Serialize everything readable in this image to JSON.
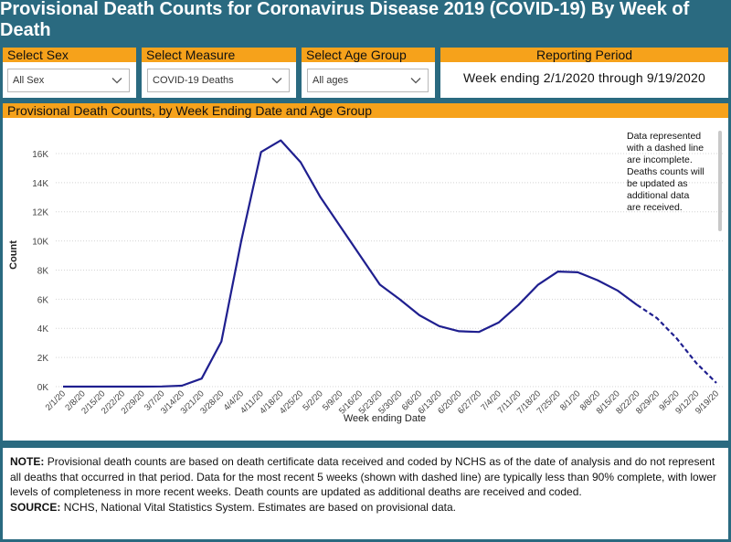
{
  "title": "Provisional Death Counts for Coronavirus Disease 2019 (COVID-19) By Week of Death",
  "filters": {
    "sex": {
      "label": "Select Sex",
      "value": "All Sex"
    },
    "measure": {
      "label": "Select Measure",
      "value": "COVID-19 Deaths"
    },
    "age": {
      "label": "Select Age Group",
      "value": "All ages"
    }
  },
  "period": {
    "label": "Reporting Period",
    "text": "Week ending 2/1/2020 through 9/19/2020"
  },
  "chart_header": "Provisional Death Counts, by Week Ending Date and Age Group",
  "side_note": "Data represented with a dashed line are incomplete. Deaths counts will be updated as additional data are received.",
  "note": {
    "label": "NOTE:",
    "text": "Provisional death counts are based on death certificate data received and coded by NCHS as of the date of analysis and do not represent all deaths that occurred in that period. Data for the most recent 5 weeks (shown with dashed line) are typically less than 90% complete, with lower levels of completeness in more recent weeks.  Death counts are updated as additional deaths are received and coded."
  },
  "source": {
    "label": "SOURCE:",
    "text": "NCHS, National Vital Statistics System. Estimates are based on provisional data."
  },
  "colors": {
    "header_bg": "#2a6a80",
    "accent": "#f6a21b",
    "line": "#1f1f8f"
  },
  "icons": {
    "dropdown": "chevron-down-icon"
  },
  "chart_data": {
    "type": "line",
    "xlabel": "Week ending Date",
    "ylabel": "Count",
    "categories": [
      "2/1/20",
      "2/8/20",
      "2/15/20",
      "2/22/20",
      "2/29/20",
      "3/7/20",
      "3/14/20",
      "3/21/20",
      "3/28/20",
      "4/4/20",
      "4/11/20",
      "4/18/20",
      "4/25/20",
      "5/2/20",
      "5/9/20",
      "5/16/20",
      "5/23/20",
      "5/30/20",
      "6/6/20",
      "6/13/20",
      "6/20/20",
      "6/27/20",
      "7/4/20",
      "7/11/20",
      "7/18/20",
      "7/25/20",
      "8/1/20",
      "8/8/20",
      "8/15/20",
      "8/22/20",
      "8/29/20",
      "9/5/20",
      "9/12/20",
      "9/19/20"
    ],
    "values": [
      0,
      0,
      0,
      0,
      0,
      10,
      60,
      550,
      3100,
      10000,
      16100,
      16900,
      15400,
      13000,
      11000,
      9000,
      7000,
      6000,
      4900,
      4150,
      3800,
      3750,
      4400,
      5600,
      7000,
      7900,
      7850,
      7300,
      6600,
      5600,
      4700,
      3300,
      1600,
      250
    ],
    "dashed_from_index": 29,
    "ylim": [
      0,
      17000
    ],
    "yticks": [
      0,
      2000,
      4000,
      6000,
      8000,
      10000,
      12000,
      14000,
      16000
    ],
    "ytick_labels": [
      "0K",
      "2K",
      "4K",
      "6K",
      "8K",
      "10K",
      "12K",
      "14K",
      "16K"
    ],
    "grid": true,
    "legend": "none"
  }
}
